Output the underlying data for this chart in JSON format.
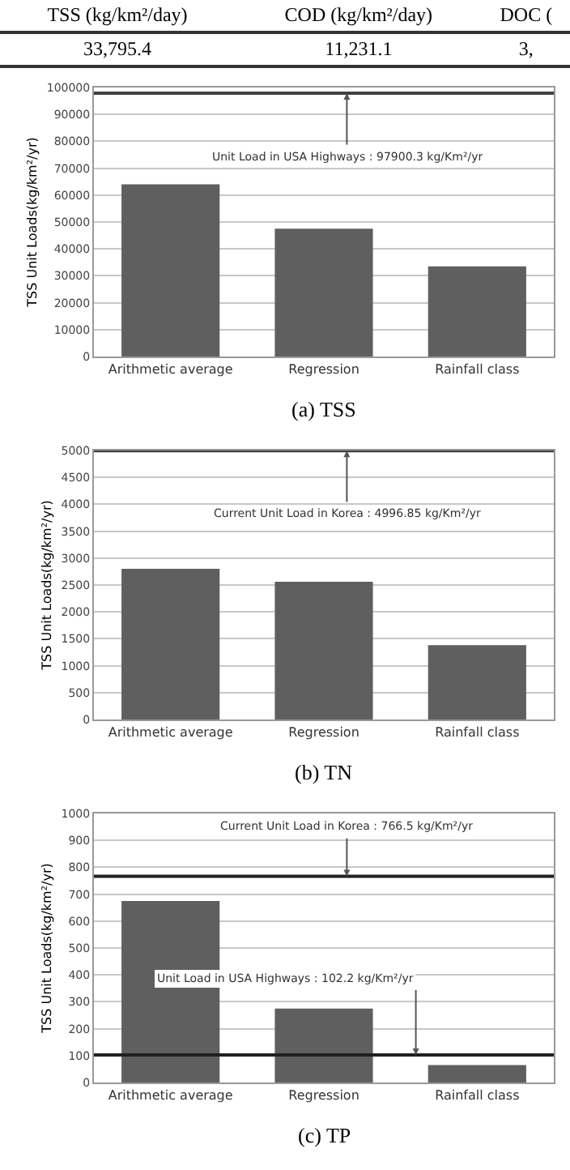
{
  "chart_data": [
    {
      "type": "other",
      "annotations": [
        "TSS  (kg/km²/day)",
        "COD  (kg/km²/day)",
        "DOC  (",
        "33,795.4",
        "11,231.1",
        "3,"
      ]
    },
    {
      "type": "bar",
      "ylabel": "TSS Unit Loads(kg/km²/yr)",
      "categories": [
        "Arithmetic average",
        "Regression",
        "Rainfall class"
      ],
      "series": [
        {
          "color": "#5f5f5f",
          "values": [
            64000,
            47500,
            33500
          ]
        }
      ],
      "ylim": [
        0,
        100000
      ],
      "yticks": [
        0,
        10000,
        20000,
        30000,
        40000,
        50000,
        60000,
        70000,
        80000,
        90000,
        100000
      ],
      "grid": "y",
      "ref_lines": [
        {
          "axis": "y",
          "value": 97900.3,
          "label": "Unit Load in USA Highways : 97900.3 kg/Km²/yr",
          "color": "#404040"
        }
      ],
      "annotations": [
        "(a) TSS"
      ]
    },
    {
      "type": "bar",
      "ylabel": "TSS Unit Loads(kg/km²/yr)",
      "categories": [
        "Arithmetic average",
        "Regression",
        "Rainfall class"
      ],
      "series": [
        {
          "color": "#5f5f5f",
          "values": [
            2800,
            2560,
            1380
          ]
        }
      ],
      "ylim": [
        0,
        5000
      ],
      "yticks": [
        0,
        500,
        1000,
        1500,
        2000,
        2500,
        3000,
        3500,
        4000,
        4500,
        5000
      ],
      "grid": "y",
      "ref_lines": [
        {
          "axis": "y",
          "value": 4996.85,
          "label": "Current Unit Load in Korea : 4996.85 kg/Km²/yr",
          "color": "#404040"
        }
      ],
      "annotations": [
        "(b) TN"
      ]
    },
    {
      "type": "bar",
      "ylabel": "TSS Unit Loads(kg/km²/yr)",
      "categories": [
        "Arithmetic average",
        "Regression",
        "Rainfall class"
      ],
      "series": [
        {
          "color": "#5f5f5f",
          "values": [
            675,
            275,
            65
          ]
        }
      ],
      "ylim": [
        0,
        1000
      ],
      "yticks": [
        0,
        100,
        200,
        300,
        400,
        500,
        600,
        700,
        800,
        900,
        1000
      ],
      "grid": "y",
      "ref_lines": [
        {
          "axis": "y",
          "value": 766.5,
          "label": "Current Unit Load in Korea : 766.5 kg/Km²/yr",
          "color": "#202020"
        },
        {
          "axis": "y",
          "value": 102.2,
          "label": "Unit Load in USA Highways : 102.2 kg/Km²/yr",
          "color": "#202020"
        }
      ],
      "annotations": [
        "(c) TP"
      ]
    }
  ]
}
